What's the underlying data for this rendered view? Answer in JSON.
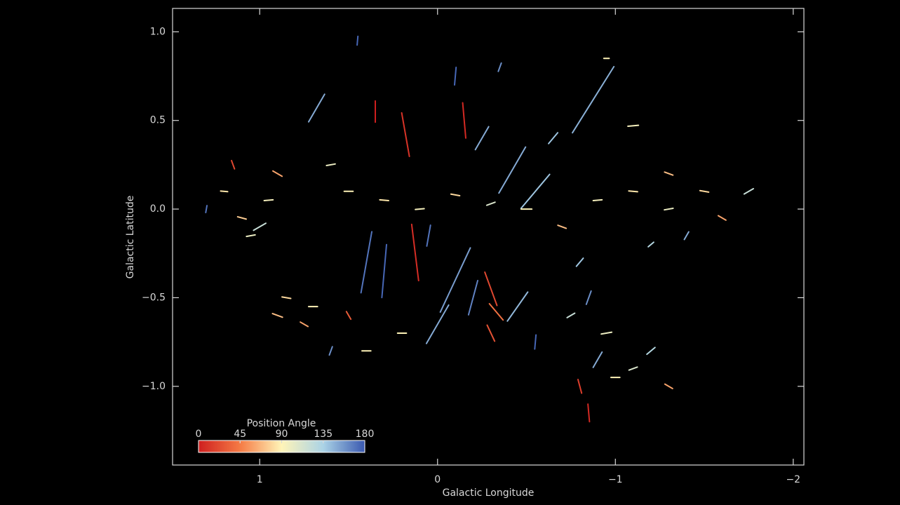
{
  "chart_data": {
    "type": "segments",
    "xlabel": "Galactic Longitude",
    "ylabel": "Galactic Latitude",
    "xlim": [
      1.49,
      -2.06
    ],
    "ylim": [
      -1.444,
      1.132
    ],
    "xticks": [
      1,
      0,
      {
        "value": -1,
        "label": "−1"
      },
      {
        "value": -2,
        "label": "−2"
      }
    ],
    "yticks": [
      {
        "value": 1.0,
        "label": "1.0"
      },
      {
        "value": 0.5,
        "label": "0.5"
      },
      {
        "value": 0.0,
        "label": "0.0"
      },
      {
        "value": -0.5,
        "label": "−0.5"
      },
      {
        "value": -1.0,
        "label": "−1.0"
      }
    ],
    "colorbar": {
      "label": "Position Angle",
      "lim": [
        0,
        180
      ],
      "ticks": [
        0,
        45,
        90,
        135,
        180
      ],
      "colors": [
        "#cf1f1f",
        "#f57b45",
        "#fff4b8",
        "#abd3e6",
        "#3a59b0"
      ]
    },
    "x": [
      -0.875,
      0.126,
      0.68,
      0.18,
      -0.15,
      -0.42,
      -0.55,
      0.4,
      0.3,
      -0.1,
      -0.3,
      -0.33,
      0.9,
      0.85,
      0.75,
      0.7,
      1.0,
      1.05,
      1.1,
      0.95,
      1.2,
      1.3,
      0.9,
      0.6,
      0.5,
      0.3,
      0.1,
      -0.1,
      -0.3,
      -0.5,
      -0.7,
      -0.9,
      -1.1,
      -1.3,
      -1.5,
      -1.6,
      -1.75,
      -1.4,
      -1.2,
      -0.8,
      -0.85,
      -0.75,
      -0.95,
      -0.9,
      -0.8,
      -0.85,
      -1.0,
      -1.1,
      -1.2,
      -1.3,
      0.5,
      0.6,
      0.4,
      0.0,
      -0.2,
      -0.45,
      -0.55,
      0.05,
      -0.25,
      0.35,
      -0.1,
      -0.35,
      0.45,
      -0.95,
      -1.1,
      -0.3,
      0.2,
      -0.65,
      1.15,
      -1.3
    ],
    "y": [
      0.617,
      -0.245,
      0.57,
      0.42,
      0.5,
      0.22,
      0.1,
      -0.3,
      -0.35,
      -0.4,
      -0.45,
      -0.58,
      -0.6,
      -0.5,
      -0.65,
      -0.55,
      -0.1,
      -0.15,
      -0.05,
      0.05,
      0.1,
      0.0,
      0.2,
      0.25,
      0.1,
      0.05,
      0.0,
      0.08,
      0.03,
      0.0,
      -0.1,
      0.05,
      0.1,
      0.0,
      0.1,
      -0.05,
      0.1,
      -0.15,
      -0.2,
      -0.3,
      -0.5,
      -0.6,
      -0.7,
      -0.85,
      -1.0,
      -1.15,
      -0.95,
      -0.9,
      -0.8,
      -1.0,
      -0.6,
      -0.8,
      -0.8,
      -0.65,
      -0.5,
      -0.55,
      -0.75,
      -0.15,
      0.4,
      0.55,
      0.75,
      0.8,
      0.95,
      0.85,
      0.47,
      -0.7,
      -0.7,
      0.4,
      0.25,
      0.2
    ],
    "angle": [
      148,
      7,
      150,
      10,
      5,
      150,
      140,
      170,
      175,
      155,
      20,
      40,
      70,
      80,
      60,
      90,
      120,
      100,
      75,
      95,
      85,
      170,
      60,
      100,
      90,
      85,
      95,
      80,
      110,
      90,
      70,
      95,
      85,
      100,
      80,
      60,
      120,
      150,
      130,
      140,
      160,
      120,
      100,
      150,
      15,
      5,
      90,
      110,
      130,
      60,
      30,
      160,
      90,
      150,
      165,
      145,
      175,
      170,
      150,
      0,
      175,
      160,
      175,
      90,
      95,
      25,
      90,
      140,
      20,
      70
    ],
    "length": [
      0.44,
      0.32,
      0.18,
      0.25,
      0.2,
      0.3,
      0.25,
      0.35,
      0.3,
      0.4,
      0.2,
      0.12,
      0.06,
      0.05,
      0.05,
      0.05,
      0.08,
      0.05,
      0.05,
      0.05,
      0.04,
      0.04,
      0.06,
      0.05,
      0.05,
      0.05,
      0.05,
      0.05,
      0.05,
      0.06,
      0.05,
      0.05,
      0.05,
      0.05,
      0.05,
      0.05,
      0.06,
      0.05,
      0.04,
      0.06,
      0.08,
      0.05,
      0.06,
      0.1,
      0.08,
      0.1,
      0.05,
      0.05,
      0.06,
      0.05,
      0.05,
      0.05,
      0.05,
      0.25,
      0.2,
      0.2,
      0.08,
      0.12,
      0.15,
      0.12,
      0.1,
      0.05,
      0.05,
      0.03,
      0.06,
      0.1,
      0.05,
      0.08,
      0.05,
      0.05
    ]
  }
}
